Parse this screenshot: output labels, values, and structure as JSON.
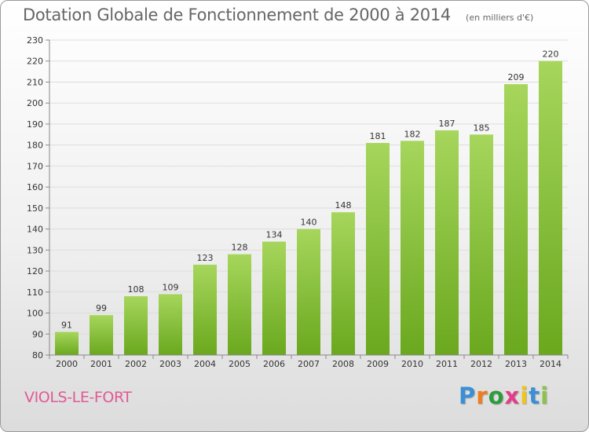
{
  "header": {
    "title": "Dotation Globale de Fonctionnement de 2000 à 2014",
    "subtitle": "(en milliers d'€)"
  },
  "footer": {
    "commune": "VIOLS-LE-FORT",
    "logo_text": "Proxiti",
    "logo_colors": [
      "#3a8fd6",
      "#f07c1e",
      "#2d9c3c",
      "#e33d8a",
      "#f0c419",
      "#3a8fd6",
      "#8bc34a"
    ]
  },
  "colors": {
    "bar_light": "#a6d65c",
    "bar_dark": "#6aa81e",
    "axis_text": "#333333",
    "grid": "#dddddd",
    "title": "#666666",
    "commune": "#e05a95"
  },
  "chart_data": {
    "type": "bar",
    "categories": [
      "2000",
      "2001",
      "2002",
      "2003",
      "2004",
      "2005",
      "2006",
      "2007",
      "2008",
      "2009",
      "2010",
      "2011",
      "2012",
      "2013",
      "2014"
    ],
    "values": [
      91,
      99,
      108,
      109,
      123,
      128,
      134,
      140,
      148,
      181,
      182,
      187,
      185,
      209,
      220
    ],
    "data_labels": [
      "91",
      "99",
      "108",
      "109",
      "123",
      "128",
      "134",
      "140",
      "148",
      "181",
      "182",
      "187",
      "185",
      "209",
      "220"
    ],
    "title": "Dotation Globale de Fonctionnement de 2000 à 2014",
    "unit": "(en milliers d'€)",
    "ylim": [
      80,
      230
    ],
    "yticks": [
      80,
      90,
      100,
      110,
      120,
      130,
      140,
      150,
      160,
      170,
      180,
      190,
      200,
      210,
      220,
      230
    ],
    "grid": true,
    "legend": "none"
  }
}
